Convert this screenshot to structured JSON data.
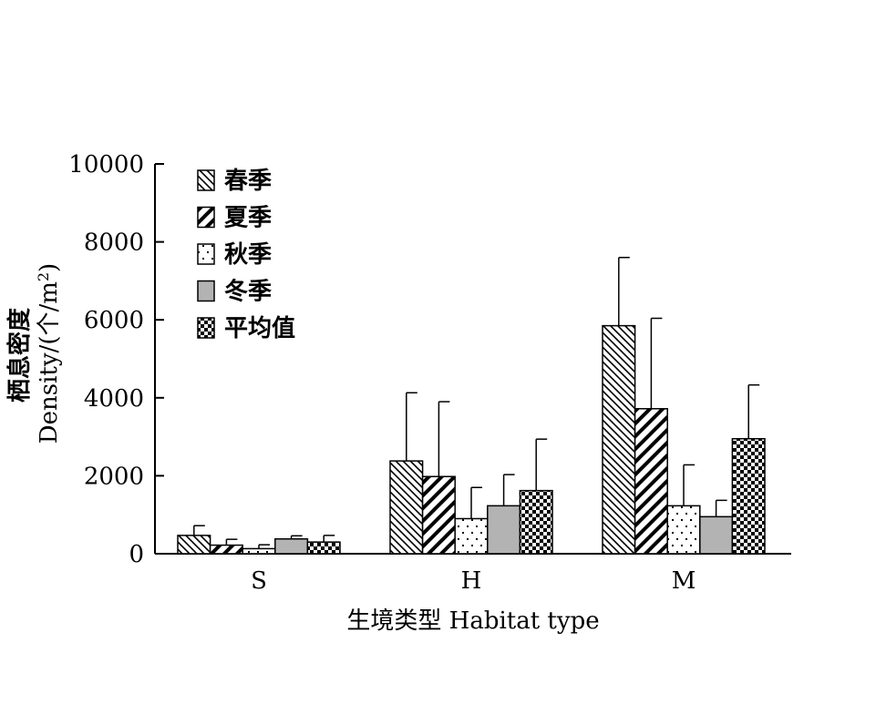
{
  "chart_data": {
    "type": "bar",
    "xlabel": "生境类型 Habitat type",
    "ylabel_line1": "栖息密度",
    "ylabel_line2_prefix": "Density/(个/m",
    "ylabel_line2_sup": "2",
    "ylabel_line2_suffix": ")",
    "ylim": [
      0,
      10000
    ],
    "yticks": [
      "0",
      "2000",
      "4000",
      "6000",
      "8000",
      "10000"
    ],
    "ytick_values": [
      0,
      2000,
      4000,
      6000,
      8000,
      10000
    ],
    "categories": [
      "S",
      "H",
      "M"
    ],
    "legend_position": "top-left",
    "grid": false,
    "series": [
      {
        "name": "春季",
        "pattern": "diag-thin",
        "values": [
          470,
          2380,
          5850
        ],
        "errors": [
          250,
          1750,
          1750
        ]
      },
      {
        "name": "夏季",
        "pattern": "diag-thick",
        "values": [
          220,
          1980,
          3720
        ],
        "errors": [
          150,
          1920,
          2320
        ]
      },
      {
        "name": "秋季",
        "pattern": "dots",
        "values": [
          130,
          900,
          1230
        ],
        "errors": [
          100,
          800,
          1050
        ]
      },
      {
        "name": "冬季",
        "pattern": "gray",
        "values": [
          380,
          1230,
          950
        ],
        "errors": [
          80,
          800,
          420
        ]
      },
      {
        "name": "平均值",
        "pattern": "checker",
        "values": [
          300,
          1620,
          2950
        ],
        "errors": [
          170,
          1320,
          1380
        ]
      }
    ]
  }
}
